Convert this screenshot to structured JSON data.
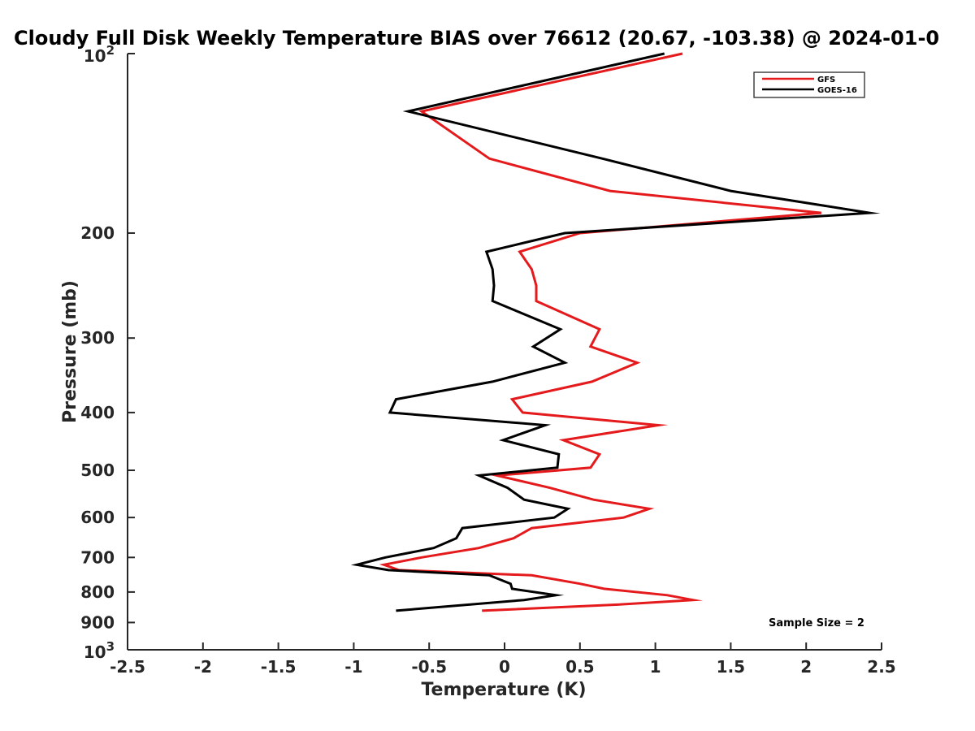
{
  "chart_data": {
    "type": "line",
    "title": "Cloudy Full Disk Weekly Temperature BIAS over 76612 (20.67, -103.38) @ 2024-01-0",
    "xlabel": "Temperature (K)",
    "ylabel": "Pressure (mb)",
    "xlim": [
      -2.5,
      2.5
    ],
    "ylim": [
      100,
      1000
    ],
    "y_scale": "log",
    "y_reversed": true,
    "x_ticks": [
      -2.5,
      -2,
      -1.5,
      -1,
      -0.5,
      0,
      0.5,
      1,
      1.5,
      2,
      2.5
    ],
    "x_tick_labels": [
      "-2.5",
      "-2",
      "-1.5",
      "-1",
      "-0.5",
      "0",
      "0.5",
      "1",
      "1.5",
      "2",
      "2.5"
    ],
    "y_ticks": [
      200,
      300,
      400,
      500,
      600,
      700,
      800,
      900
    ],
    "y_tick_labels": [
      "200",
      "300",
      "400",
      "500",
      "600",
      "700",
      "800",
      "900"
    ],
    "y_edge_ticks": [
      {
        "value": 100,
        "base": "10",
        "exp": "2"
      },
      {
        "value": 1000,
        "base": "10",
        "exp": "3"
      }
    ],
    "grid": false,
    "legend_position": "top-right",
    "annotation": "Sample Size = 2",
    "series": [
      {
        "name": "GFS",
        "color": "#e41a1c",
        "x": [
          1.18,
          -0.55,
          -0.1,
          0.7,
          2.1,
          0.5,
          0.1,
          0.18,
          0.21,
          0.21,
          0.63,
          0.57,
          0.88,
          0.58,
          0.05,
          0.12,
          1.02,
          0.39,
          0.63,
          0.57,
          -0.05,
          0.3,
          0.59,
          0.96,
          0.79,
          0.18,
          0.06,
          -0.17,
          -0.55,
          -0.8,
          -0.7,
          0.18,
          0.5,
          0.66,
          1.08,
          1.25,
          0.75,
          -0.15
        ],
        "y": [
          100,
          125,
          150,
          170,
          185,
          200,
          215,
          230,
          245,
          260,
          290,
          310,
          330,
          355,
          380,
          400,
          420,
          445,
          470,
          495,
          510,
          535,
          560,
          580,
          600,
          625,
          650,
          675,
          700,
          720,
          735,
          750,
          775,
          790,
          810,
          825,
          840,
          860
        ]
      },
      {
        "name": "GOES-16",
        "color": "#000000",
        "x": [
          1.06,
          -0.64,
          0.65,
          1.5,
          2.42,
          0.4,
          -0.12,
          -0.08,
          -0.07,
          -0.08,
          0.37,
          0.19,
          0.4,
          -0.08,
          -0.72,
          -0.76,
          0.27,
          -0.01,
          0.36,
          0.35,
          -0.17,
          0.02,
          0.13,
          0.42,
          0.33,
          -0.28,
          -0.32,
          -0.47,
          -0.79,
          -0.98,
          -0.77,
          -0.1,
          0.04,
          0.05,
          0.34,
          0.13,
          -0.72
        ],
        "y": [
          100,
          125,
          150,
          170,
          185,
          200,
          215,
          230,
          245,
          260,
          290,
          310,
          330,
          355,
          380,
          400,
          420,
          445,
          470,
          495,
          510,
          535,
          560,
          580,
          600,
          625,
          650,
          675,
          700,
          720,
          735,
          750,
          775,
          790,
          810,
          825,
          860
        ]
      }
    ]
  }
}
